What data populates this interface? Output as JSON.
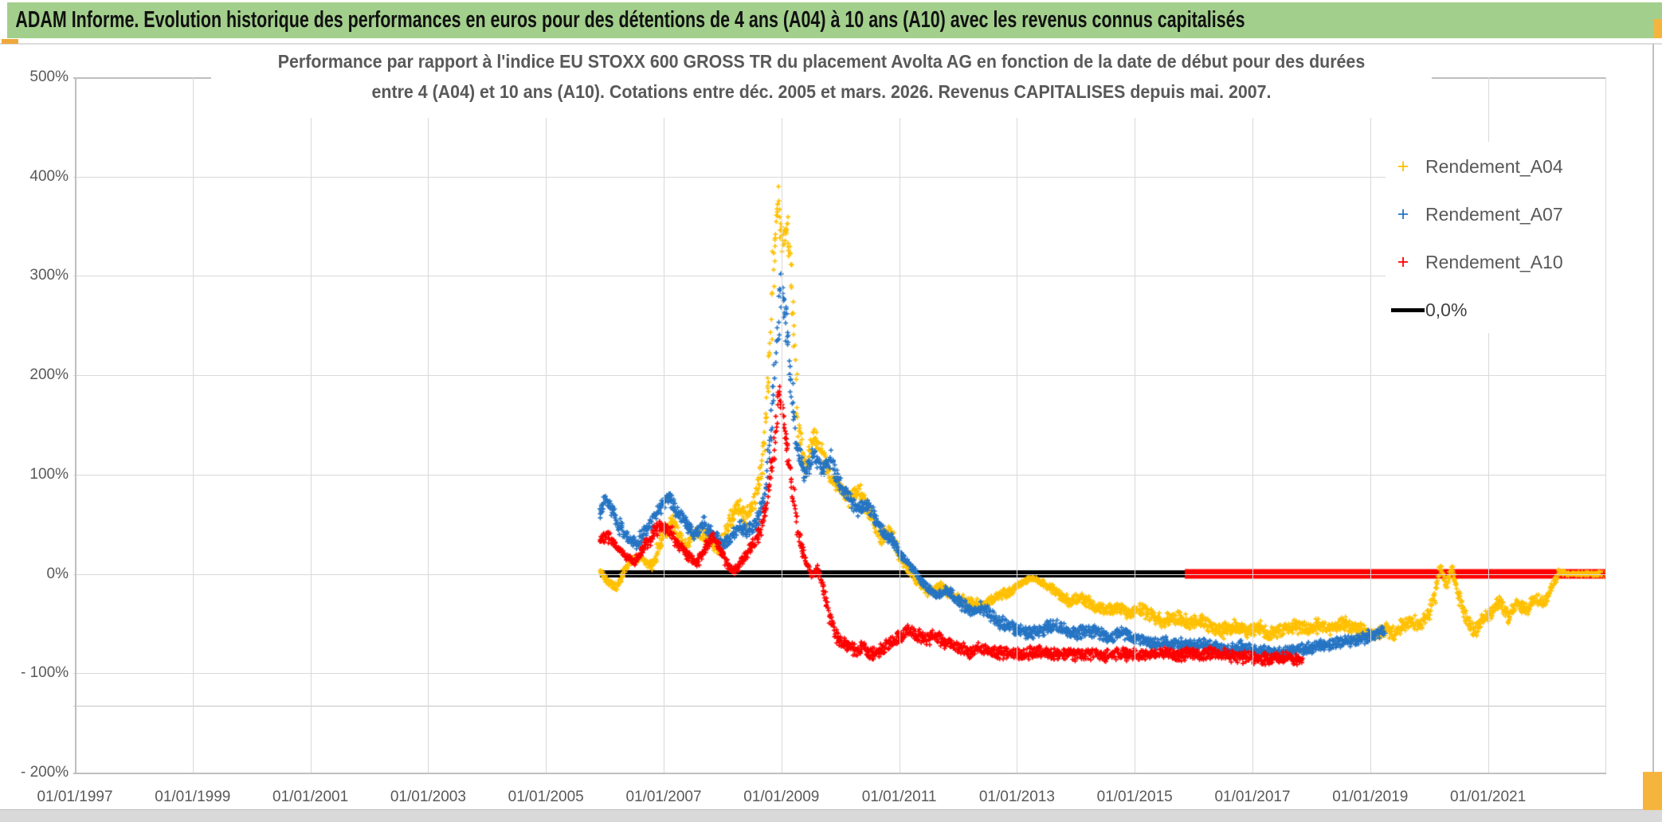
{
  "header": {
    "title": "ADAM Informe. Evolution historique des performances en euros pour des détentions de 4 ans (A04) à 10 ans (A10) avec les revenus connus capitalisés"
  },
  "chart_title": {
    "line1": "Performance par rapport à l'indice EU STOXX 600 GROSS TR  du placement Avolta AG en fonction de la date de début pour des durées",
    "line2": "entre 4 (A04) et 10 ans (A10). Cotations entre déc. 2005 et mars. 2026. Revenus CAPITALISES depuis mai. 2007."
  },
  "legend": {
    "items": [
      {
        "label": "Rendement_A04",
        "color": "#FFC000",
        "marker": "plus"
      },
      {
        "label": "Rendement_A07",
        "color": "#2574C4",
        "marker": "plus"
      },
      {
        "label": "Rendement_A10",
        "color": "#FF0000",
        "marker": "plus"
      },
      {
        "label": "0,0%",
        "color": "#000000",
        "marker": "line"
      }
    ]
  },
  "chart_data": {
    "type": "scatter",
    "title": "Performance par rapport à l'indice EU STOXX 600 GROSS TR du placement Avolta AG en fonction de la date de début pour des durées entre 4 (A04) et 10 ans (A10). Cotations entre déc. 2005 et mars. 2026. Revenus CAPITALISES depuis mai. 2007.",
    "x_axis": {
      "label_format": "dd/mm/yyyy",
      "tick_labels": [
        "01/01/1997",
        "01/01/1999",
        "01/01/2001",
        "01/01/2003",
        "01/01/2005",
        "01/01/2007",
        "01/01/2009",
        "01/01/2011",
        "01/01/2013",
        "01/01/2015",
        "01/01/2017",
        "01/01/2019",
        "01/01/2021"
      ],
      "tick_years": [
        1997,
        1999,
        2001,
        2003,
        2005,
        2007,
        2009,
        2011,
        2013,
        2015,
        2017,
        2019,
        2021
      ],
      "range_years": [
        1997,
        2023.0
      ],
      "grid": true
    },
    "y_axis": {
      "tick_labels": [
        "500%",
        "400%",
        "300%",
        "200%",
        "100%",
        "0%",
        "- 100%",
        "- 200%"
      ],
      "tick_values": [
        500,
        400,
        300,
        200,
        100,
        0,
        -100,
        -200
      ],
      "range": [
        -200,
        500
      ],
      "grid": true,
      "extra_gridline_value": -133
    },
    "legend_position": "top-right-inside",
    "marker": "plus",
    "series": [
      {
        "name": "Rendement_A04",
        "color": "#FFC000",
        "seed": 11,
        "amp": 8,
        "points": [
          [
            2005.92,
            3
          ],
          [
            2006.05,
            -8
          ],
          [
            2006.2,
            -14
          ],
          [
            2006.4,
            12
          ],
          [
            2006.6,
            18
          ],
          [
            2006.8,
            8
          ],
          [
            2007.0,
            40
          ],
          [
            2007.15,
            52
          ],
          [
            2007.35,
            28
          ],
          [
            2007.55,
            40
          ],
          [
            2007.75,
            36
          ],
          [
            2007.95,
            22
          ],
          [
            2008.1,
            50
          ],
          [
            2008.25,
            70
          ],
          [
            2008.4,
            55
          ],
          [
            2008.55,
            75
          ],
          [
            2008.68,
            110
          ],
          [
            2008.78,
            200
          ],
          [
            2008.88,
            330
          ],
          [
            2008.95,
            375
          ],
          [
            2009.02,
            330
          ],
          [
            2009.1,
            355
          ],
          [
            2009.18,
            290
          ],
          [
            2009.28,
            150
          ],
          [
            2009.4,
            105
          ],
          [
            2009.55,
            140
          ],
          [
            2009.7,
            120
          ],
          [
            2009.85,
            95
          ],
          [
            2010.0,
            88
          ],
          [
            2010.15,
            75
          ],
          [
            2010.3,
            85
          ],
          [
            2010.5,
            60
          ],
          [
            2010.7,
            35
          ],
          [
            2010.85,
            45
          ],
          [
            2011.0,
            20
          ],
          [
            2011.15,
            5
          ],
          [
            2011.3,
            -8
          ],
          [
            2011.5,
            -18
          ],
          [
            2011.7,
            -12
          ],
          [
            2011.9,
            -22
          ],
          [
            2012.1,
            -28
          ],
          [
            2012.3,
            -32
          ],
          [
            2012.5,
            -28
          ],
          [
            2012.7,
            -22
          ],
          [
            2012.9,
            -18
          ],
          [
            2013.1,
            -8
          ],
          [
            2013.3,
            -4
          ],
          [
            2013.5,
            -12
          ],
          [
            2013.7,
            -20
          ],
          [
            2013.9,
            -28
          ],
          [
            2014.1,
            -24
          ],
          [
            2014.3,
            -32
          ],
          [
            2014.5,
            -38
          ],
          [
            2014.7,
            -34
          ],
          [
            2014.9,
            -40
          ],
          [
            2015.1,
            -35
          ],
          [
            2015.3,
            -42
          ],
          [
            2015.5,
            -48
          ],
          [
            2015.7,
            -44
          ],
          [
            2015.9,
            -50
          ],
          [
            2016.1,
            -46
          ],
          [
            2016.3,
            -54
          ],
          [
            2016.5,
            -58
          ],
          [
            2016.7,
            -52
          ],
          [
            2016.9,
            -58
          ],
          [
            2017.1,
            -54
          ],
          [
            2017.3,
            -60
          ],
          [
            2017.5,
            -56
          ],
          [
            2017.7,
            -52
          ],
          [
            2017.9,
            -56
          ],
          [
            2018.1,
            -52
          ],
          [
            2018.3,
            -56
          ],
          [
            2018.5,
            -50
          ],
          [
            2018.7,
            -54
          ],
          [
            2018.9,
            -58
          ],
          [
            2019.1,
            -62
          ],
          [
            2019.25,
            -55
          ],
          [
            2019.4,
            -60
          ],
          [
            2019.55,
            -52
          ],
          [
            2019.7,
            -48
          ],
          [
            2019.85,
            -52
          ],
          [
            2020.0,
            -40
          ],
          [
            2020.1,
            -20
          ],
          [
            2020.2,
            8
          ],
          [
            2020.28,
            -12
          ],
          [
            2020.38,
            5
          ],
          [
            2020.5,
            -20
          ],
          [
            2020.62,
            -45
          ],
          [
            2020.75,
            -58
          ],
          [
            2020.9,
            -48
          ],
          [
            2021.05,
            -40
          ],
          [
            2021.2,
            -28
          ],
          [
            2021.35,
            -42
          ],
          [
            2021.5,
            -30
          ],
          [
            2021.65,
            -38
          ],
          [
            2021.8,
            -24
          ],
          [
            2021.95,
            -30
          ],
          [
            2022.1,
            -12
          ],
          [
            2022.2,
            2
          ],
          [
            2022.35,
            0
          ],
          [
            2023.0,
            0
          ]
        ]
      },
      {
        "name": "Rendement_A07",
        "color": "#2574C4",
        "seed": 22,
        "amp": 7,
        "points": [
          [
            2005.92,
            62
          ],
          [
            2006.0,
            75
          ],
          [
            2006.1,
            68
          ],
          [
            2006.25,
            48
          ],
          [
            2006.4,
            36
          ],
          [
            2006.55,
            30
          ],
          [
            2006.7,
            45
          ],
          [
            2006.85,
            58
          ],
          [
            2007.0,
            72
          ],
          [
            2007.1,
            78
          ],
          [
            2007.25,
            60
          ],
          [
            2007.4,
            48
          ],
          [
            2007.55,
            40
          ],
          [
            2007.7,
            52
          ],
          [
            2007.85,
            40
          ],
          [
            2008.0,
            28
          ],
          [
            2008.15,
            38
          ],
          [
            2008.3,
            48
          ],
          [
            2008.45,
            42
          ],
          [
            2008.6,
            55
          ],
          [
            2008.72,
            80
          ],
          [
            2008.82,
            140
          ],
          [
            2008.92,
            230
          ],
          [
            2009.0,
            300
          ],
          [
            2009.08,
            250
          ],
          [
            2009.16,
            190
          ],
          [
            2009.25,
            130
          ],
          [
            2009.4,
            100
          ],
          [
            2009.55,
            120
          ],
          [
            2009.7,
            105
          ],
          [
            2009.85,
            115
          ],
          [
            2010.0,
            90
          ],
          [
            2010.15,
            75
          ],
          [
            2010.3,
            65
          ],
          [
            2010.45,
            72
          ],
          [
            2010.6,
            55
          ],
          [
            2010.75,
            40
          ],
          [
            2010.9,
            32
          ],
          [
            2011.05,
            18
          ],
          [
            2011.2,
            8
          ],
          [
            2011.35,
            -5
          ],
          [
            2011.5,
            -15
          ],
          [
            2011.65,
            -22
          ],
          [
            2011.8,
            -16
          ],
          [
            2011.95,
            -24
          ],
          [
            2012.1,
            -32
          ],
          [
            2012.25,
            -38
          ],
          [
            2012.4,
            -34
          ],
          [
            2012.55,
            -42
          ],
          [
            2012.7,
            -48
          ],
          [
            2012.85,
            -52
          ],
          [
            2013.0,
            -56
          ],
          [
            2013.2,
            -60
          ],
          [
            2013.4,
            -56
          ],
          [
            2013.6,
            -52
          ],
          [
            2013.8,
            -56
          ],
          [
            2014.0,
            -60
          ],
          [
            2014.2,
            -56
          ],
          [
            2014.4,
            -60
          ],
          [
            2014.6,
            -64
          ],
          [
            2014.8,
            -60
          ],
          [
            2015.0,
            -64
          ],
          [
            2015.2,
            -68
          ],
          [
            2015.4,
            -72
          ],
          [
            2015.6,
            -68
          ],
          [
            2015.8,
            -72
          ],
          [
            2016.0,
            -70
          ],
          [
            2016.2,
            -72
          ],
          [
            2016.4,
            -74
          ],
          [
            2016.6,
            -76
          ],
          [
            2016.8,
            -74
          ],
          [
            2017.0,
            -76
          ],
          [
            2017.2,
            -78
          ],
          [
            2017.4,
            -80
          ],
          [
            2017.6,
            -78
          ],
          [
            2017.8,
            -76
          ],
          [
            2018.0,
            -74
          ],
          [
            2018.2,
            -72
          ],
          [
            2018.4,
            -70
          ],
          [
            2018.6,
            -68
          ],
          [
            2018.8,
            -66
          ],
          [
            2019.0,
            -62
          ],
          [
            2019.25,
            -56
          ]
        ]
      },
      {
        "name": "Rendement_A10",
        "color": "#FF0000",
        "seed": 33,
        "amp": 7,
        "points": [
          [
            2005.92,
            32
          ],
          [
            2006.05,
            38
          ],
          [
            2006.2,
            28
          ],
          [
            2006.35,
            18
          ],
          [
            2006.5,
            12
          ],
          [
            2006.65,
            25
          ],
          [
            2006.8,
            38
          ],
          [
            2006.95,
            50
          ],
          [
            2007.1,
            44
          ],
          [
            2007.25,
            30
          ],
          [
            2007.4,
            20
          ],
          [
            2007.55,
            10
          ],
          [
            2007.7,
            25
          ],
          [
            2007.85,
            38
          ],
          [
            2008.0,
            20
          ],
          [
            2008.1,
            8
          ],
          [
            2008.2,
            2
          ],
          [
            2008.35,
            15
          ],
          [
            2008.5,
            28
          ],
          [
            2008.65,
            45
          ],
          [
            2008.78,
            80
          ],
          [
            2008.88,
            130
          ],
          [
            2008.96,
            185
          ],
          [
            2009.04,
            150
          ],
          [
            2009.12,
            120
          ],
          [
            2009.2,
            80
          ],
          [
            2009.3,
            35
          ],
          [
            2009.42,
            10
          ],
          [
            2009.52,
            -2
          ],
          [
            2009.62,
            5
          ],
          [
            2009.72,
            -15
          ],
          [
            2009.82,
            -45
          ],
          [
            2009.95,
            -65
          ],
          [
            2010.1,
            -72
          ],
          [
            2010.25,
            -78
          ],
          [
            2010.4,
            -74
          ],
          [
            2010.55,
            -80
          ],
          [
            2010.7,
            -76
          ],
          [
            2010.85,
            -70
          ],
          [
            2011.0,
            -64
          ],
          [
            2011.15,
            -58
          ],
          [
            2011.3,
            -62
          ],
          [
            2011.45,
            -66
          ],
          [
            2011.6,
            -62
          ],
          [
            2011.75,
            -68
          ],
          [
            2011.9,
            -72
          ],
          [
            2012.05,
            -74
          ],
          [
            2012.2,
            -78
          ],
          [
            2012.35,
            -74
          ],
          [
            2012.5,
            -78
          ],
          [
            2012.65,
            -80
          ],
          [
            2012.8,
            -78
          ],
          [
            2012.95,
            -80
          ],
          [
            2013.1,
            -82
          ],
          [
            2013.3,
            -78
          ],
          [
            2013.5,
            -80
          ],
          [
            2013.7,
            -82
          ],
          [
            2013.9,
            -80
          ],
          [
            2014.1,
            -82
          ],
          [
            2014.3,
            -80
          ],
          [
            2014.5,
            -82
          ],
          [
            2014.7,
            -80
          ],
          [
            2014.9,
            -82
          ],
          [
            2015.1,
            -80
          ],
          [
            2015.3,
            -82
          ],
          [
            2015.5,
            -80
          ],
          [
            2015.7,
            -82
          ],
          [
            2015.9,
            -80
          ],
          [
            2016.1,
            -82
          ],
          [
            2016.3,
            -80
          ],
          [
            2016.6,
            -82
          ],
          [
            2016.9,
            -84
          ],
          [
            2017.2,
            -86
          ],
          [
            2017.5,
            -84
          ],
          [
            2017.85,
            -86
          ]
        ]
      }
    ],
    "reference_lines": [
      {
        "name": "0,0%",
        "color": "#000000",
        "value": 0,
        "from_year": 2005.92,
        "to_year": 2015.85,
        "thickness": 9
      },
      {
        "name": "A10-zero-extension",
        "color": "#FF0000",
        "value": 0,
        "from_year": 2015.85,
        "to_year": 2023.05,
        "thickness": 12
      }
    ]
  }
}
